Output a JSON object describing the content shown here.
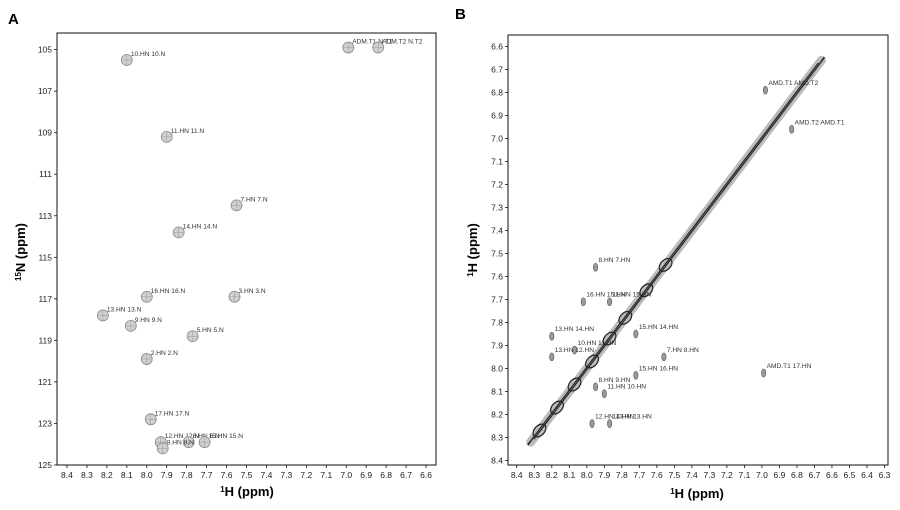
{
  "chart_data": [
    {
      "panel": "A",
      "type": "scatter",
      "xlabel": "1H (ppm)",
      "xlabel_base": "H (ppm)",
      "xlabel_sup": "1",
      "ylabel": "15N (ppm)",
      "ylabel_base": "N (ppm)",
      "ylabel_sup": "15",
      "xlim": [
        8.45,
        6.55
      ],
      "ylim": [
        104.2,
        125.0
      ],
      "xticks": [
        "8.4",
        "8.3",
        "8.2",
        "8.1",
        "8.0",
        "7.9",
        "7.8",
        "7.7",
        "7.6",
        "7.5",
        "7.4",
        "7.3",
        "7.2",
        "7.1",
        "7.0",
        "6.9",
        "6.8",
        "6.7",
        "6.6"
      ],
      "yticks": [
        "105",
        "107",
        "109",
        "111",
        "113",
        "115",
        "117",
        "119",
        "121",
        "123",
        "125"
      ],
      "peaks": [
        {
          "label": "10.HN 10.N",
          "x": 8.1,
          "y": 105.5
        },
        {
          "label": "ADM.T1 N.T1",
          "x": 6.99,
          "y": 104.9
        },
        {
          "label": "ADM.T2 N.T2",
          "x": 6.84,
          "y": 104.9
        },
        {
          "label": "11.HN 11.N",
          "x": 7.9,
          "y": 109.2
        },
        {
          "label": "7.HN 7.N",
          "x": 7.55,
          "y": 112.5
        },
        {
          "label": "14.HN 14.N",
          "x": 7.84,
          "y": 113.8
        },
        {
          "label": "16.HN 16.N",
          "x": 8.0,
          "y": 116.9
        },
        {
          "label": "3.HN 3.N",
          "x": 7.56,
          "y": 116.9
        },
        {
          "label": "13.HN 13.N",
          "x": 8.22,
          "y": 117.8
        },
        {
          "label": "9.HN 9.N",
          "x": 8.08,
          "y": 118.3
        },
        {
          "label": "5.HN 5.N",
          "x": 7.77,
          "y": 118.8
        },
        {
          "label": "2.HN 2.N",
          "x": 8.0,
          "y": 119.9
        },
        {
          "label": "17.HN 17.N",
          "x": 7.98,
          "y": 122.8
        },
        {
          "label": "12.HN 12.N",
          "x": 7.93,
          "y": 123.9
        },
        {
          "label": "6.HN 6.N",
          "x": 7.79,
          "y": 123.9
        },
        {
          "label": "15.HN 15.N",
          "x": 7.71,
          "y": 123.9
        },
        {
          "label": "8.HN 8.N",
          "x": 7.92,
          "y": 124.2
        }
      ]
    },
    {
      "panel": "B",
      "type": "scatter",
      "xlabel": "1H (ppm)",
      "xlabel_base": "H (ppm)",
      "xlabel_sup": "1",
      "ylabel": "1H (ppm)",
      "ylabel_base": "H (ppm)",
      "ylabel_sup": "1",
      "xlim": [
        8.45,
        6.28
      ],
      "ylim": [
        6.55,
        8.42
      ],
      "xticks": [
        "8.4",
        "8.3",
        "8.2",
        "8.1",
        "8.0",
        "7.9",
        "7.8",
        "7.7",
        "7.6",
        "7.5",
        "7.4",
        "7.3",
        "7.2",
        "7.1",
        "7.0",
        "6.9",
        "6.8",
        "6.7",
        "6.6",
        "6.5",
        "6.4",
        "6.3"
      ],
      "yticks": [
        "6.6",
        "6.7",
        "6.8",
        "6.9",
        "7.0",
        "7.1",
        "7.2",
        "7.3",
        "7.4",
        "7.5",
        "7.6",
        "7.7",
        "7.8",
        "7.9",
        "8.0",
        "8.1",
        "8.2",
        "8.3",
        "8.4"
      ],
      "peaks": [
        {
          "label": "AMD.T1 AMD.T2",
          "x": 6.98,
          "y": 6.79
        },
        {
          "label": "AMD.T2 AMD.T1",
          "x": 6.83,
          "y": 6.96
        },
        {
          "label": "8.HN 7.HN",
          "x": 7.95,
          "y": 7.56
        },
        {
          "label": "16.HN 15.HN",
          "x": 8.02,
          "y": 7.71
        },
        {
          "label": "11.HN 15.HN",
          "x": 7.87,
          "y": 7.71
        },
        {
          "label": "13.HN 14.HN",
          "x": 8.2,
          "y": 7.86
        },
        {
          "label": "15.HN 14.HN",
          "x": 7.72,
          "y": 7.85
        },
        {
          "label": "10.HN 11.HN",
          "x": 8.07,
          "y": 7.92
        },
        {
          "label": "13.HN 12.HN",
          "x": 8.2,
          "y": 7.95
        },
        {
          "label": "7.HN 8.HN",
          "x": 7.56,
          "y": 7.95
        },
        {
          "label": "15.HN 16.HN",
          "x": 7.72,
          "y": 8.03
        },
        {
          "label": "AMD.T1 17.HN",
          "x": 6.99,
          "y": 8.02
        },
        {
          "label": "8.HN 9.HN",
          "x": 7.95,
          "y": 8.08
        },
        {
          "label": "11.HN 10.HN",
          "x": 7.9,
          "y": 8.11
        },
        {
          "label": "12.HN 13.HN",
          "x": 7.97,
          "y": 8.24
        },
        {
          "label": "14.HN 13.HN",
          "x": 7.87,
          "y": 8.24
        }
      ]
    }
  ]
}
